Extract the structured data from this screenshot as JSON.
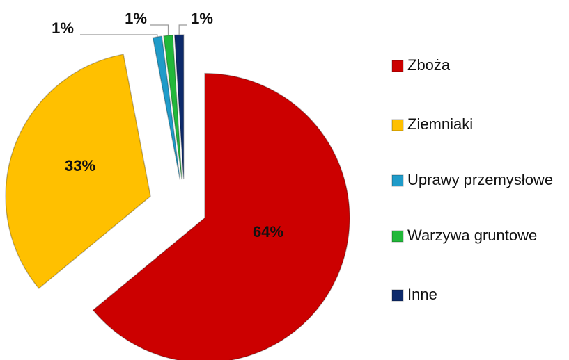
{
  "chart_data": {
    "type": "pie",
    "categories": [
      "Zboża",
      "Ziemniaki",
      "Uprawy przemysłowe",
      "Warzywa gruntowe",
      "Inne"
    ],
    "values": [
      64,
      33,
      1,
      1,
      1
    ],
    "value_labels": [
      "64%",
      "33%",
      "1%",
      "1%",
      "1%"
    ],
    "colors": [
      "#cc0000",
      "#ffc000",
      "#1f9bc9",
      "#22b83a",
      "#0d2a6b"
    ],
    "legend": "right"
  }
}
